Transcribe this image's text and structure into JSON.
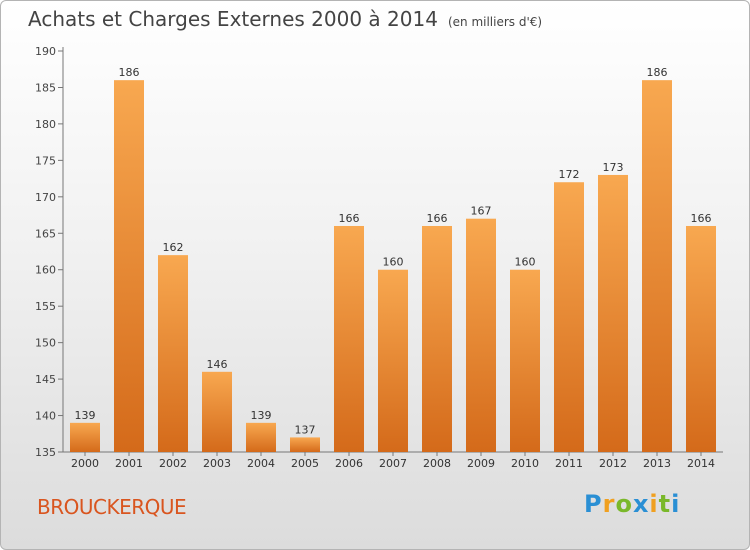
{
  "title": "Achats et Charges Externes 2000 à 2014",
  "subtitle": "(en milliers d'€)",
  "commune": "BROUCKERQUE",
  "logo": {
    "text": "Proxiti",
    "letters": [
      {
        "ch": "P",
        "color": "#2a8fd4"
      },
      {
        "ch": "r",
        "color": "#f0a020"
      },
      {
        "ch": "o",
        "color": "#7ab82a"
      },
      {
        "ch": "x",
        "color": "#2a8fd4"
      },
      {
        "ch": "i",
        "color": "#f0a020"
      },
      {
        "ch": "t",
        "color": "#7ab82a"
      },
      {
        "ch": "i",
        "color": "#2a8fd4"
      }
    ]
  },
  "colors": {
    "bar_light": "#f8a850",
    "bar_dark": "#d46a1a",
    "title": "#444444",
    "commune": "#d9551f"
  },
  "chart_data": {
    "type": "bar",
    "title": "Achats et Charges Externes 2000 à 2014",
    "subtitle": "(en milliers d'€)",
    "xlabel": "",
    "ylabel": "",
    "categories": [
      "2000",
      "2001",
      "2002",
      "2003",
      "2004",
      "2005",
      "2006",
      "2007",
      "2008",
      "2009",
      "2010",
      "2011",
      "2012",
      "2013",
      "2014"
    ],
    "values": [
      139,
      186,
      162,
      146,
      139,
      137,
      166,
      160,
      166,
      167,
      160,
      172,
      173,
      186,
      166
    ],
    "data_labels": [
      "139",
      "186",
      "162",
      "146",
      "139",
      "137",
      "166",
      "160",
      "166",
      "167",
      "160",
      "172",
      "173",
      "186",
      "166"
    ],
    "ylim": [
      135,
      190
    ],
    "yticks": [
      135,
      140,
      145,
      150,
      155,
      160,
      165,
      170,
      175,
      180,
      185,
      190
    ],
    "grid": false,
    "legend": "none"
  }
}
